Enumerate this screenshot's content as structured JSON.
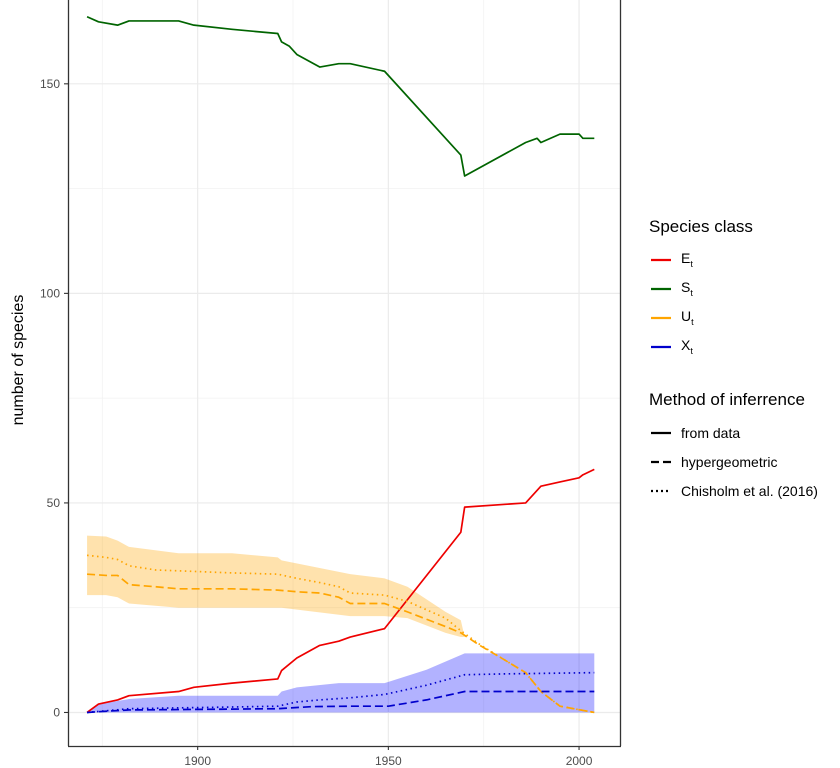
{
  "chart_data": {
    "type": "line",
    "title": "",
    "xlabel": "",
    "ylabel": "number of species",
    "xlim": [
      1866,
      2011
    ],
    "ylim": [
      -8,
      170
    ],
    "x_ticks": [
      1900,
      1950,
      2000
    ],
    "y_ticks": [
      0,
      50,
      100,
      150
    ],
    "grid": true,
    "legend_placement": "right",
    "legend_groups": [
      {
        "title": "Species class",
        "entries": [
          {
            "base": "E",
            "sub": "t",
            "color": "#ee0000"
          },
          {
            "base": "S",
            "sub": "t",
            "color": "#006400"
          },
          {
            "base": "U",
            "sub": "t",
            "color": "#ffa500"
          },
          {
            "base": "X",
            "sub": "t",
            "color": "#0000cc"
          }
        ]
      },
      {
        "title": "Method of inferrence",
        "entries": [
          {
            "label": "from data",
            "dash": "solid"
          },
          {
            "label": "hypergeometric",
            "dash": "dashed"
          },
          {
            "label": "Chisholm et al. (2016)",
            "dash": "dotted"
          }
        ]
      }
    ],
    "series": [
      {
        "class": "S",
        "method": "from data",
        "color": "#006400",
        "dash": "solid",
        "points": [
          [
            1871,
            166
          ],
          [
            1874,
            164.8
          ],
          [
            1879,
            164
          ],
          [
            1882,
            165
          ],
          [
            1895,
            165
          ],
          [
            1899,
            164
          ],
          [
            1909,
            163
          ],
          [
            1921,
            162
          ],
          [
            1922,
            160
          ],
          [
            1924,
            159
          ],
          [
            1926,
            157
          ],
          [
            1932,
            154
          ],
          [
            1937,
            154.8
          ],
          [
            1940,
            154.8
          ],
          [
            1949,
            153
          ],
          [
            1969,
            133
          ],
          [
            1970,
            128
          ],
          [
            1986,
            136
          ],
          [
            1989,
            137
          ],
          [
            1990,
            136
          ],
          [
            1995,
            138
          ],
          [
            2000,
            138
          ],
          [
            2001,
            137
          ],
          [
            2004,
            137
          ]
        ]
      },
      {
        "class": "E",
        "method": "from data",
        "color": "#ee0000",
        "dash": "solid",
        "points": [
          [
            1871,
            0
          ],
          [
            1874,
            2
          ],
          [
            1879,
            3
          ],
          [
            1882,
            4
          ],
          [
            1895,
            5
          ],
          [
            1899,
            6
          ],
          [
            1909,
            7
          ],
          [
            1921,
            8
          ],
          [
            1922,
            10
          ],
          [
            1926,
            13
          ],
          [
            1932,
            16
          ],
          [
            1937,
            17
          ],
          [
            1940,
            18
          ],
          [
            1949,
            20
          ],
          [
            1969,
            43
          ],
          [
            1970,
            49
          ],
          [
            1986,
            50
          ],
          [
            1990,
            54
          ],
          [
            1995,
            55
          ],
          [
            2000,
            56
          ],
          [
            2001,
            56.7
          ],
          [
            2004,
            58
          ]
        ]
      },
      {
        "class": "U",
        "method": "hypergeometric",
        "color": "#ffa500",
        "dash": "dashed",
        "points": [
          [
            1871,
            33
          ],
          [
            1876,
            32.7
          ],
          [
            1879,
            32.7
          ],
          [
            1882,
            30.5
          ],
          [
            1889,
            30
          ],
          [
            1895,
            29.5
          ],
          [
            1909,
            29.5
          ],
          [
            1921,
            29.2
          ],
          [
            1926,
            28.8
          ],
          [
            1932,
            28.5
          ],
          [
            1937,
            27.5
          ],
          [
            1940,
            26
          ],
          [
            1949,
            26
          ],
          [
            1955,
            24
          ],
          [
            1965,
            20.5
          ],
          [
            1969,
            19
          ],
          [
            1974,
            16
          ],
          [
            1980,
            12.8
          ],
          [
            1986,
            9.5
          ],
          [
            1990,
            5
          ],
          [
            1995,
            1.5
          ],
          [
            2004,
            0
          ]
        ]
      },
      {
        "class": "U",
        "method": "Chisholm et al. (2016)",
        "color": "#ffa500",
        "dash": "dotted",
        "points": [
          [
            1871,
            37.5
          ],
          [
            1876,
            37
          ],
          [
            1879,
            36.5
          ],
          [
            1882,
            35
          ],
          [
            1889,
            34
          ],
          [
            1895,
            33.8
          ],
          [
            1909,
            33.3
          ],
          [
            1921,
            33
          ],
          [
            1926,
            32
          ],
          [
            1932,
            31
          ],
          [
            1937,
            30
          ],
          [
            1940,
            28.5
          ],
          [
            1949,
            28
          ],
          [
            1955,
            26.5
          ],
          [
            1965,
            22.5
          ],
          [
            1969,
            19.5
          ],
          [
            1974,
            16.2
          ],
          [
            1980,
            12.8
          ],
          [
            1986,
            9.5
          ],
          [
            1990,
            5
          ],
          [
            1995,
            1.5
          ],
          [
            2004,
            0
          ]
        ]
      },
      {
        "class": "X",
        "method": "hypergeometric",
        "color": "#0000cc",
        "dash": "dashed",
        "points": [
          [
            1871,
            0
          ],
          [
            1876,
            0.3
          ],
          [
            1882,
            0.6
          ],
          [
            1895,
            0.7
          ],
          [
            1909,
            0.8
          ],
          [
            1921,
            0.9
          ],
          [
            1930,
            1.4
          ],
          [
            1940,
            1.5
          ],
          [
            1950,
            1.5
          ],
          [
            1960,
            3
          ],
          [
            1970,
            5
          ],
          [
            1980,
            5
          ],
          [
            2004,
            5
          ]
        ]
      },
      {
        "class": "X",
        "method": "Chisholm et al. (2016)",
        "color": "#0000cc",
        "dash": "dotted",
        "points": [
          [
            1871,
            0
          ],
          [
            1876,
            0.4
          ],
          [
            1882,
            0.9
          ],
          [
            1895,
            1.1
          ],
          [
            1909,
            1.3
          ],
          [
            1921,
            1.5
          ],
          [
            1926,
            2.5
          ],
          [
            1932,
            3
          ],
          [
            1940,
            3.5
          ],
          [
            1949,
            4.3
          ],
          [
            1960,
            6.5
          ],
          [
            1970,
            9
          ],
          [
            1980,
            9.2
          ],
          [
            2004,
            9.5
          ]
        ]
      }
    ],
    "ribbons": [
      {
        "class": "U",
        "color": "#ffa500",
        "opacity": 0.32,
        "points": [
          [
            1871,
            28,
            42.2
          ],
          [
            1876,
            28,
            42
          ],
          [
            1879,
            27.5,
            41
          ],
          [
            1882,
            26,
            39.5
          ],
          [
            1895,
            25,
            38
          ],
          [
            1909,
            25,
            38
          ],
          [
            1921,
            25,
            37
          ],
          [
            1922,
            25,
            36.3
          ],
          [
            1940,
            23,
            33
          ],
          [
            1949,
            23,
            32
          ],
          [
            1955,
            22.5,
            30
          ],
          [
            1965,
            19,
            24
          ],
          [
            1969,
            18,
            22
          ],
          [
            1970,
            18,
            18
          ]
        ]
      },
      {
        "class": "X",
        "color": "#0000ff",
        "opacity": 0.3,
        "points": [
          [
            1871,
            0,
            0
          ],
          [
            1874,
            0,
            2
          ],
          [
            1882,
            0,
            3.2
          ],
          [
            1895,
            0,
            4
          ],
          [
            1921,
            0,
            4
          ],
          [
            1922,
            0,
            5
          ],
          [
            1926,
            0,
            6
          ],
          [
            1937,
            0,
            7
          ],
          [
            1949,
            0,
            7
          ],
          [
            1960,
            0,
            10.2
          ],
          [
            1970,
            0,
            14.1
          ],
          [
            2004,
            0,
            14.1
          ]
        ]
      }
    ]
  }
}
